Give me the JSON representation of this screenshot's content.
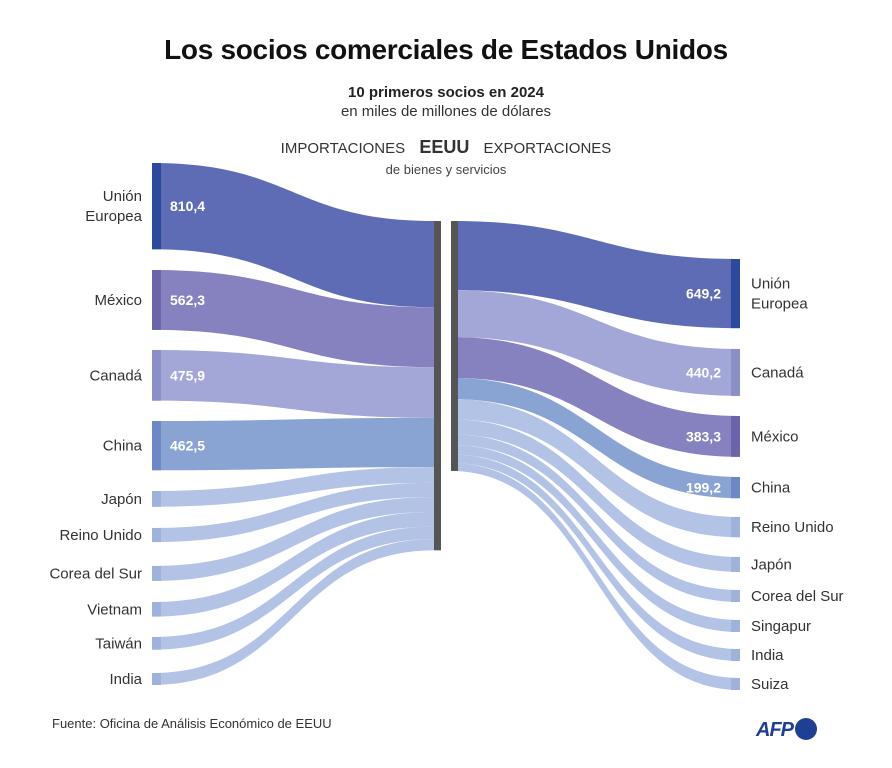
{
  "title": "Los socios comerciales de Estados Unidos",
  "subtitle": "10 primeros socios en 2024",
  "unit": "en miles de millones de dólares",
  "header": {
    "left": "IMPORTACIONES",
    "center": "EEUU",
    "right": "EXPORTACIONES",
    "note": "de bienes y servicios"
  },
  "source": "Fuente: Oficina de Análisis Económico de EEUU",
  "logo": "AFP",
  "chart_data": {
    "type": "sankey",
    "series": [
      {
        "name": "IMPORTACIONES",
        "partners": [
          {
            "label": [
              "Unión",
              "Europea"
            ],
            "value": 810.4,
            "value_label": "810,4",
            "color": "#5d6cb4",
            "edge": "#2c4a9b"
          },
          {
            "label": [
              "México"
            ],
            "value": 562.3,
            "value_label": "562,3",
            "color": "#8681bf",
            "edge": "#6c64aa"
          },
          {
            "label": [
              "Canadá"
            ],
            "value": 475.9,
            "value_label": "475,9",
            "color": "#a3a7d8",
            "edge": "#8a8fc8"
          },
          {
            "label": [
              "China"
            ],
            "value": 462.5,
            "value_label": "462,5",
            "color": "#89a3d3",
            "edge": "#6d88c4"
          },
          {
            "label": [
              "Japón"
            ],
            "value": 148.2,
            "value_label": "",
            "color": "#b3c3e6",
            "edge": "#9fb2dc"
          },
          {
            "label": [
              "Reino Unido"
            ],
            "value": 132.0,
            "value_label": "",
            "color": "#b3c3e6",
            "edge": "#9fb2dc"
          },
          {
            "label": [
              "Corea del Sur"
            ],
            "value": 140.0,
            "value_label": "",
            "color": "#b3c3e6",
            "edge": "#9fb2dc"
          },
          {
            "label": [
              "Vietnam"
            ],
            "value": 137.0,
            "value_label": "",
            "color": "#b3c3e6",
            "edge": "#9fb2dc"
          },
          {
            "label": [
              "Taiwán"
            ],
            "value": 119.0,
            "value_label": "",
            "color": "#b3c3e6",
            "edge": "#9fb2dc"
          },
          {
            "label": [
              "India"
            ],
            "value": 105.0,
            "value_label": "",
            "color": "#b3c3e6",
            "edge": "#9fb2dc"
          }
        ]
      },
      {
        "name": "EXPORTACIONES",
        "partners": [
          {
            "label": [
              "Unión",
              "Europea"
            ],
            "value": 649.2,
            "value_label": "649,2",
            "color": "#5d6cb4",
            "edge": "#2c4a9b"
          },
          {
            "label": [
              "Canadá"
            ],
            "value": 440.2,
            "value_label": "440,2",
            "color": "#a3a7d8",
            "edge": "#8a8fc8"
          },
          {
            "label": [
              "México"
            ],
            "value": 383.3,
            "value_label": "383,3",
            "color": "#8681bf",
            "edge": "#6c64aa"
          },
          {
            "label": [
              "China"
            ],
            "value": 199.2,
            "value_label": "199,2",
            "color": "#89a3d3",
            "edge": "#6d88c4"
          },
          {
            "label": [
              "Reino Unido"
            ],
            "value": 190.0,
            "value_label": "",
            "color": "#b3c3e6",
            "edge": "#9fb2dc"
          },
          {
            "label": [
              "Japón"
            ],
            "value": 140.0,
            "value_label": "",
            "color": "#b3c3e6",
            "edge": "#9fb2dc"
          },
          {
            "label": [
              "Corea del Sur"
            ],
            "value": 100.0,
            "value_label": "",
            "color": "#b3c3e6",
            "edge": "#9fb2dc"
          },
          {
            "label": [
              "Singapur"
            ],
            "value": 90.0,
            "value_label": "",
            "color": "#b3c3e6",
            "edge": "#9fb2dc"
          },
          {
            "label": [
              "India"
            ],
            "value": 80.0,
            "value_label": "",
            "color": "#b3c3e6",
            "edge": "#9fb2dc"
          },
          {
            "label": [
              "Suiza"
            ],
            "value": 75.0,
            "value_label": "",
            "color": "#b3c3e6",
            "edge": "#9fb2dc"
          }
        ]
      }
    ]
  },
  "colors": {
    "center_bar": "#555555",
    "logo": "#1f3f95"
  }
}
